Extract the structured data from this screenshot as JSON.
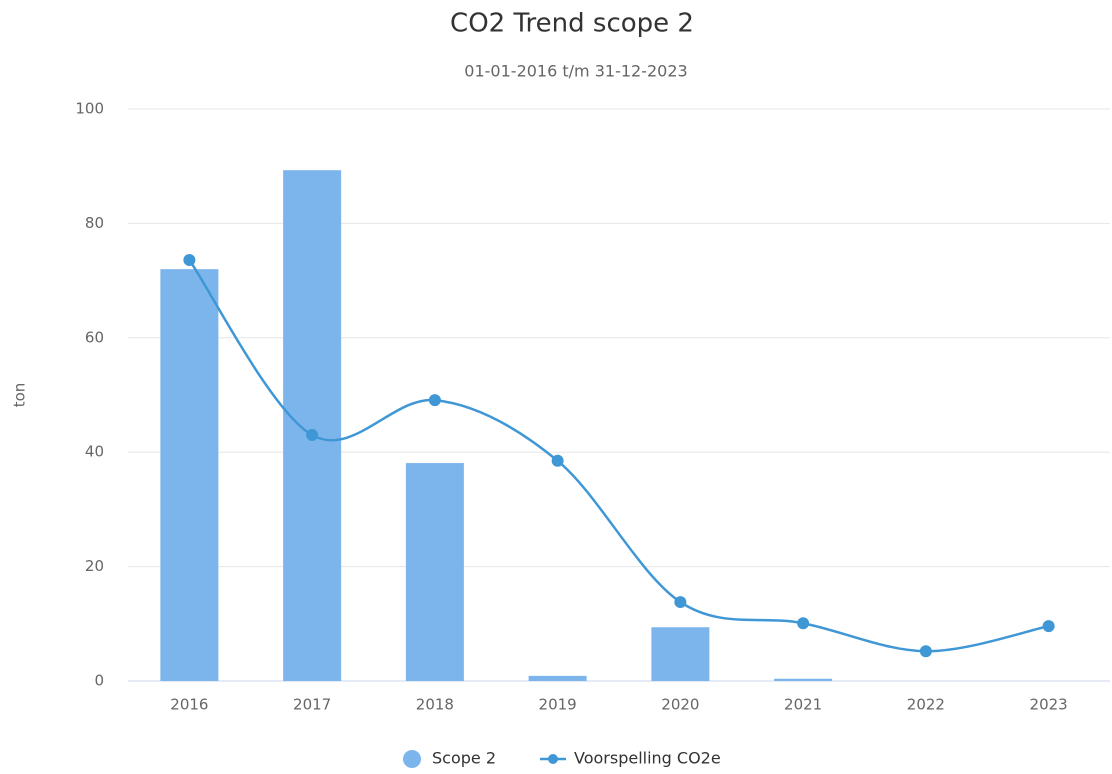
{
  "chart_data": {
    "type": "bar-line",
    "title": "CO2 Trend scope 2",
    "subtitle": "01-01-2016 t/m 31-12-2023",
    "y_label": "ton",
    "categories": [
      "2016",
      "2017",
      "2018",
      "2019",
      "2020",
      "2021",
      "2022",
      "2023"
    ],
    "series": [
      {
        "name": "Scope 2",
        "type": "bar",
        "color": "#7cb5ec",
        "values": [
          72,
          89.3,
          38.1,
          0.9,
          9.4,
          0.4,
          0,
          0
        ]
      },
      {
        "name": "Voorspelling CO2e",
        "type": "line",
        "color": "#3f97d6",
        "values": [
          73.6,
          43,
          49.1,
          38.5,
          13.8,
          10.1,
          5.2,
          9.6
        ]
      }
    ],
    "ylim": [
      0,
      100
    ],
    "yticks": [
      0,
      20,
      40,
      60,
      80,
      100
    ],
    "grid": true,
    "legend": "bottom"
  }
}
